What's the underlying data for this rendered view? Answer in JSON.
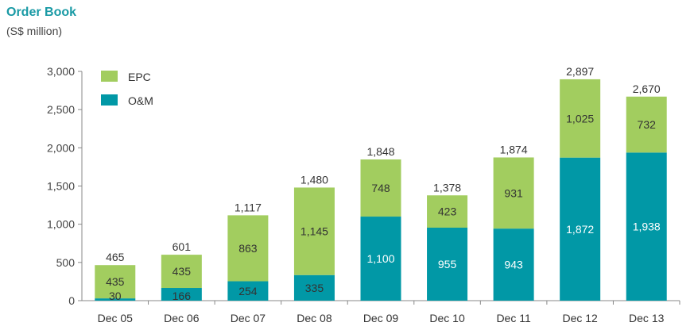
{
  "chart_data": {
    "type": "bar",
    "stacked": true,
    "title": "Order Book",
    "subtitle": "(S$ million)",
    "categories": [
      "Dec 05",
      "Dec 06",
      "Dec 07",
      "Dec 08",
      "Dec 09",
      "Dec 10",
      "Dec 11",
      "Dec 12",
      "Dec 13"
    ],
    "series": [
      {
        "name": "O&M",
        "color": "#0198a6",
        "values": [
          30,
          166,
          254,
          335,
          1100,
          955,
          943,
          1872,
          1938
        ],
        "labels": [
          "30",
          "166",
          "254",
          "335",
          "1,100",
          "955",
          "943",
          "1,872",
          "1,938"
        ]
      },
      {
        "name": "EPC",
        "color": "#a2cd5f",
        "values": [
          435,
          435,
          863,
          1145,
          748,
          423,
          931,
          1025,
          732
        ],
        "labels": [
          "435",
          "435",
          "863",
          "1,145",
          "748",
          "423",
          "931",
          "1,025",
          "732"
        ]
      }
    ],
    "totals": [
      465,
      601,
      1117,
      1480,
      1848,
      1378,
      1874,
      2897,
      2670
    ],
    "total_labels": [
      "465",
      "601",
      "1,117",
      "1,480",
      "1,848",
      "1,378",
      "1,874",
      "2,897",
      "2,670"
    ],
    "ylim": [
      0,
      3000
    ],
    "yticks": [
      0,
      500,
      1000,
      1500,
      2000,
      2500,
      3000
    ],
    "ytick_labels": [
      "0",
      "500",
      "1,000",
      "1,500",
      "2,000",
      "2,500",
      "3,000"
    ],
    "legend": [
      {
        "name": "EPC",
        "color": "#a2cd5f"
      },
      {
        "name": "O&M",
        "color": "#0198a6"
      }
    ],
    "legend_position": "top-left",
    "grid": false
  }
}
